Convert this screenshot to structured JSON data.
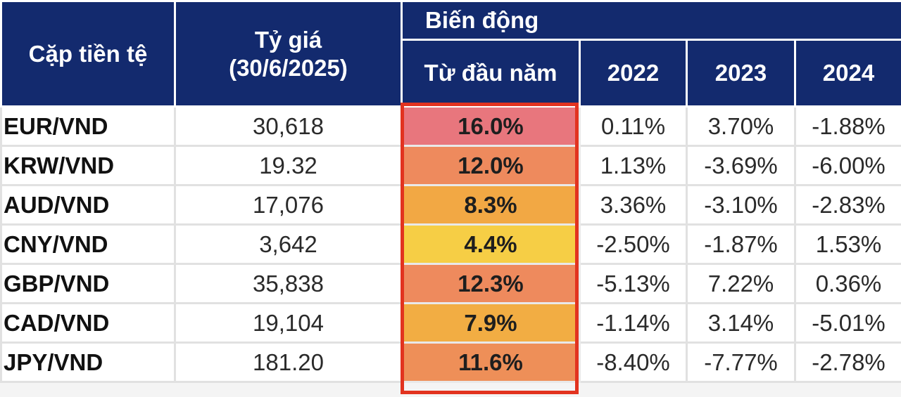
{
  "header": {
    "pair_label": "Cặp tiền tệ",
    "rate_label_line1": "Tỷ giá",
    "rate_label_line2": "(30/6/2025)",
    "change_group_label": "Biến động",
    "ytd_label": "Từ đầu năm",
    "year_2022": "2022",
    "year_2023": "2023",
    "year_2024": "2024"
  },
  "rows": [
    {
      "pair": "EUR/VND",
      "rate": "30,618",
      "ytd": "16.0%",
      "y2022": "0.11%",
      "y2023": "3.70%",
      "y2024": "-1.88%",
      "ytd_color": "#e8767d"
    },
    {
      "pair": "KRW/VND",
      "rate": "19.32",
      "ytd": "12.0%",
      "y2022": "1.13%",
      "y2023": "-3.69%",
      "y2024": "-6.00%",
      "ytd_color": "#ee8a5d"
    },
    {
      "pair": "AUD/VND",
      "rate": "17,076",
      "ytd": "8.3%",
      "y2022": "3.36%",
      "y2023": "-3.10%",
      "y2024": "-2.83%",
      "ytd_color": "#f2a844"
    },
    {
      "pair": "CNY/VND",
      "rate": "3,642",
      "ytd": "4.4%",
      "y2022": "-2.50%",
      "y2023": "-1.87%",
      "y2024": "1.53%",
      "ytd_color": "#f6ce45"
    },
    {
      "pair": "GBP/VND",
      "rate": "35,838",
      "ytd": "12.3%",
      "y2022": "-5.13%",
      "y2023": "7.22%",
      "y2024": "0.36%",
      "ytd_color": "#ee8a5d"
    },
    {
      "pair": "CAD/VND",
      "rate": "19,104",
      "ytd": "7.9%",
      "y2022": "-1.14%",
      "y2023": "3.14%",
      "y2024": "-5.01%",
      "ytd_color": "#f2ad43"
    },
    {
      "pair": "JPY/VND",
      "rate": "181.20",
      "ytd": "11.6%",
      "y2022": "-8.40%",
      "y2023": "-7.77%",
      "y2024": "-2.78%",
      "ytd_color": "#ee8f58"
    }
  ],
  "colors": {
    "header_bg": "#132a6e",
    "highlight_border": "#e2331f"
  }
}
